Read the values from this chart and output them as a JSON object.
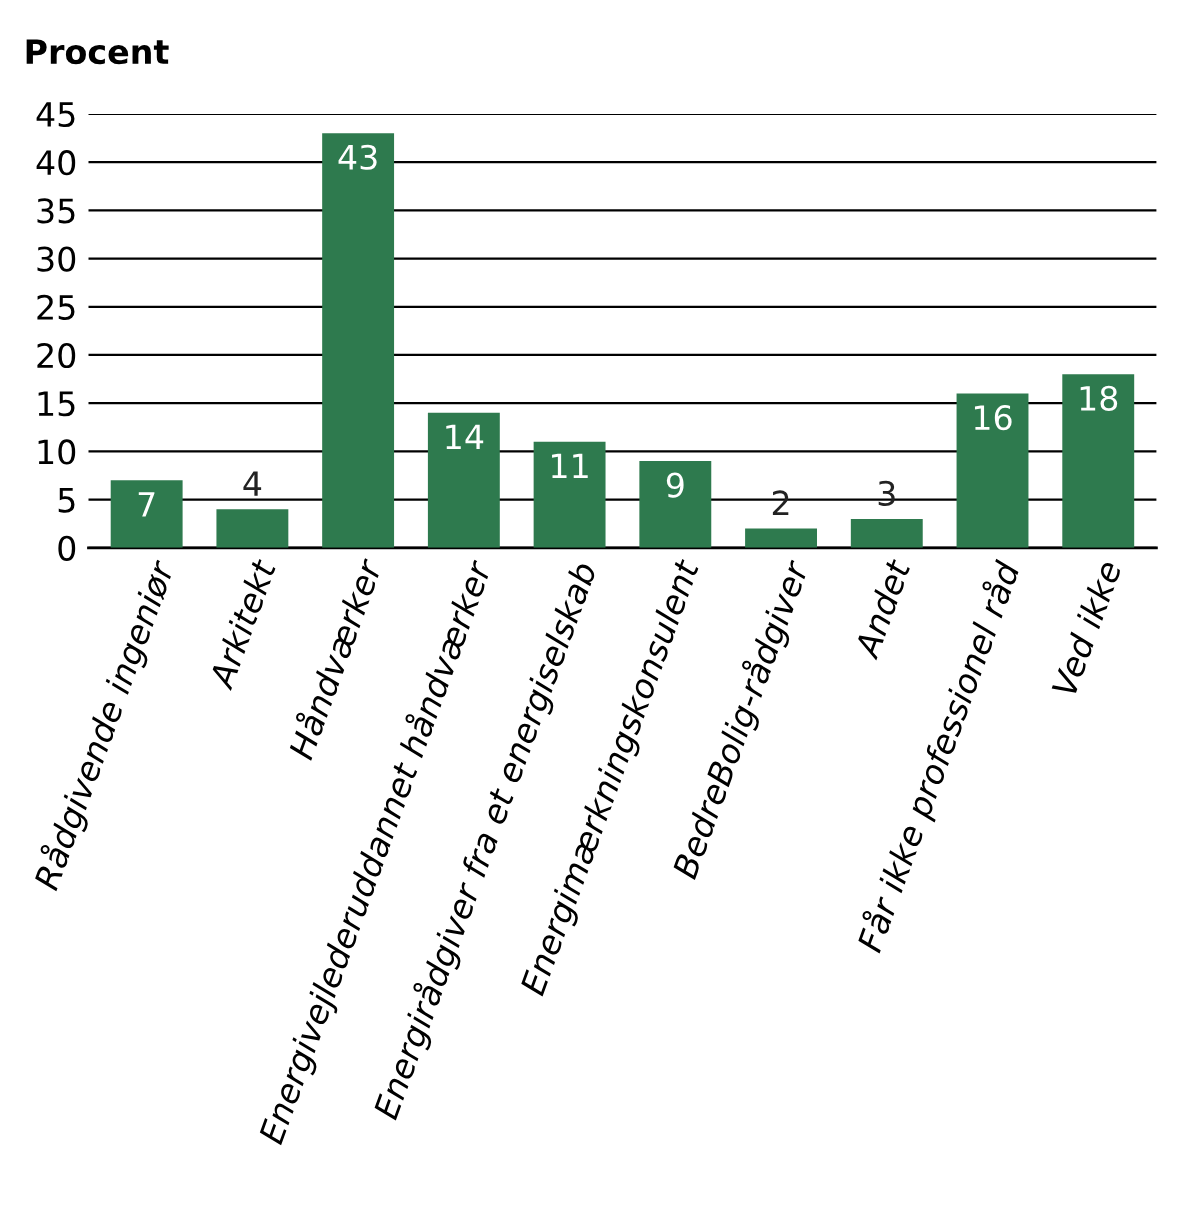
{
  "chart_data": {
    "type": "bar",
    "ylabel": "Procent",
    "categories": [
      "Rådgivende ingeniør",
      "Arkitekt",
      "Håndværker",
      "Energivejlederuddannet håndværker",
      "Energirådgiver fra et energiselskab",
      "Energimærkningskonsulent",
      "BedreBolig-rådgiver",
      "Andet",
      "Får ikke professionel råd",
      "Ved ikke"
    ],
    "values": [
      7,
      4,
      43,
      14,
      11,
      9,
      2,
      3,
      16,
      18
    ],
    "color": "#2e7a4e",
    "ylim": [
      0,
      45
    ],
    "yticks": [
      0,
      5,
      10,
      15,
      20,
      25,
      30,
      35,
      40,
      45
    ],
    "grid": "y",
    "data_labels": true
  }
}
